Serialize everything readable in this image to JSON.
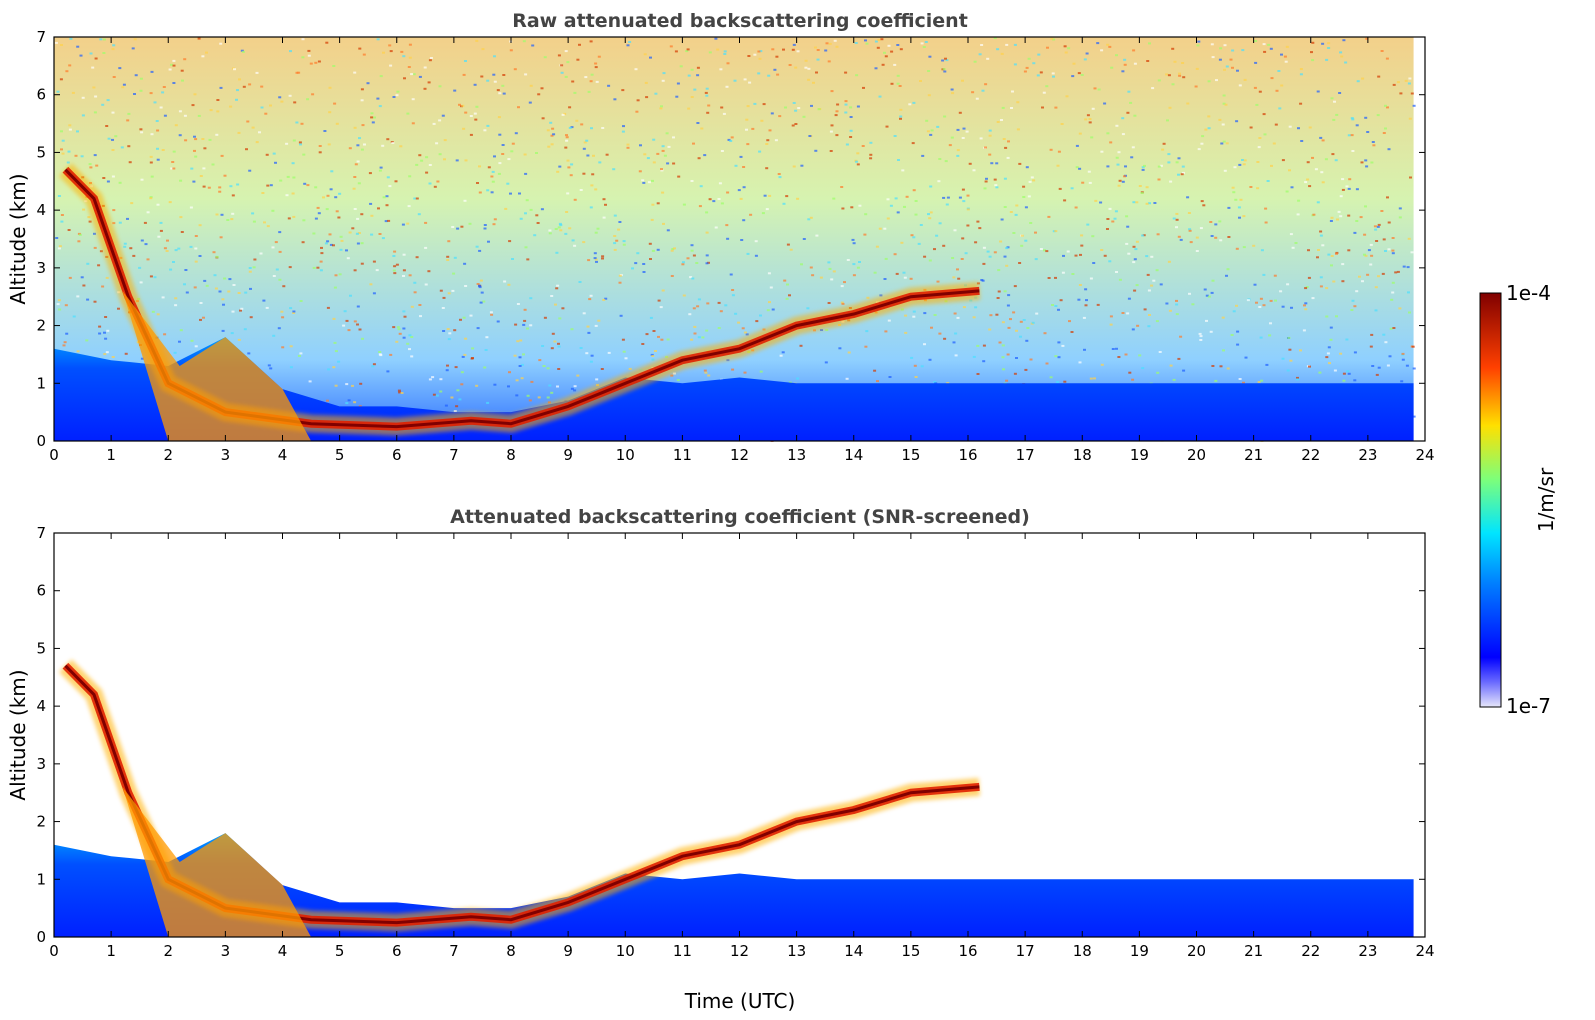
{
  "chart_data": [
    {
      "type": "heatmap",
      "title": "Raw attenuated backscattering coefficient",
      "xlabel": "",
      "ylabel": "Altitude (km)",
      "xlim": [
        0,
        24
      ],
      "ylim": [
        0,
        7
      ],
      "x_ticks": [
        "0",
        "1",
        "2",
        "3",
        "4",
        "5",
        "6",
        "7",
        "8",
        "9",
        "10",
        "11",
        "12",
        "13",
        "14",
        "15",
        "16",
        "17",
        "18",
        "19",
        "20",
        "21",
        "22",
        "23",
        "24"
      ],
      "y_ticks": [
        "0",
        "1",
        "2",
        "3",
        "4",
        "5",
        "6",
        "7"
      ],
      "features": {
        "boundary_layer_top_km": [
          [
            0,
            1.6
          ],
          [
            1,
            1.4
          ],
          [
            2,
            1.3
          ],
          [
            3,
            1.8
          ],
          [
            4,
            0.9
          ],
          [
            5,
            0.6
          ],
          [
            6,
            0.6
          ],
          [
            7,
            0.5
          ],
          [
            8,
            0.5
          ],
          [
            9,
            0.7
          ],
          [
            10,
            1.1
          ],
          [
            11,
            1.0
          ],
          [
            12,
            1.1
          ],
          [
            13,
            1.0
          ],
          [
            14,
            1.0
          ],
          [
            15,
            1.0
          ],
          [
            16,
            1.0
          ],
          [
            17,
            1.0
          ],
          [
            18,
            1.0
          ],
          [
            19,
            1.0
          ],
          [
            20,
            1.0
          ],
          [
            21,
            1.0
          ],
          [
            22,
            1.0
          ],
          [
            23,
            1.0
          ],
          [
            23.8,
            1.0
          ]
        ],
        "strong_layer_km": [
          [
            0.2,
            4.7
          ],
          [
            0.7,
            4.2
          ],
          [
            1.3,
            2.5
          ],
          [
            2.0,
            1.0
          ],
          [
            3.0,
            0.5
          ],
          [
            4.5,
            0.3
          ],
          [
            6.0,
            0.25
          ],
          [
            7.3,
            0.35
          ],
          [
            8.0,
            0.3
          ],
          [
            9.0,
            0.6
          ],
          [
            10.0,
            1.0
          ],
          [
            11.0,
            1.4
          ],
          [
            12.0,
            1.6
          ],
          [
            13.0,
            2.0
          ],
          [
            14.0,
            2.2
          ],
          [
            15.0,
            2.5
          ],
          [
            16.2,
            2.6
          ]
        ]
      }
    },
    {
      "type": "heatmap",
      "title": "Attenuated backscattering coefficient (SNR-screened)",
      "xlabel": "Time (UTC)",
      "ylabel": "Altitude (km)",
      "xlim": [
        0,
        24
      ],
      "ylim": [
        0,
        7
      ],
      "x_ticks": [
        "0",
        "1",
        "2",
        "3",
        "4",
        "5",
        "6",
        "7",
        "8",
        "9",
        "10",
        "11",
        "12",
        "13",
        "14",
        "15",
        "16",
        "17",
        "18",
        "19",
        "20",
        "21",
        "22",
        "23",
        "24"
      ],
      "y_ticks": [
        "0",
        "1",
        "2",
        "3",
        "4",
        "5",
        "6",
        "7"
      ]
    }
  ],
  "colorbar": {
    "max_label": "1e-4",
    "min_label": "1e-7",
    "unit_label": "1/m/sr",
    "colormap": "jet"
  }
}
